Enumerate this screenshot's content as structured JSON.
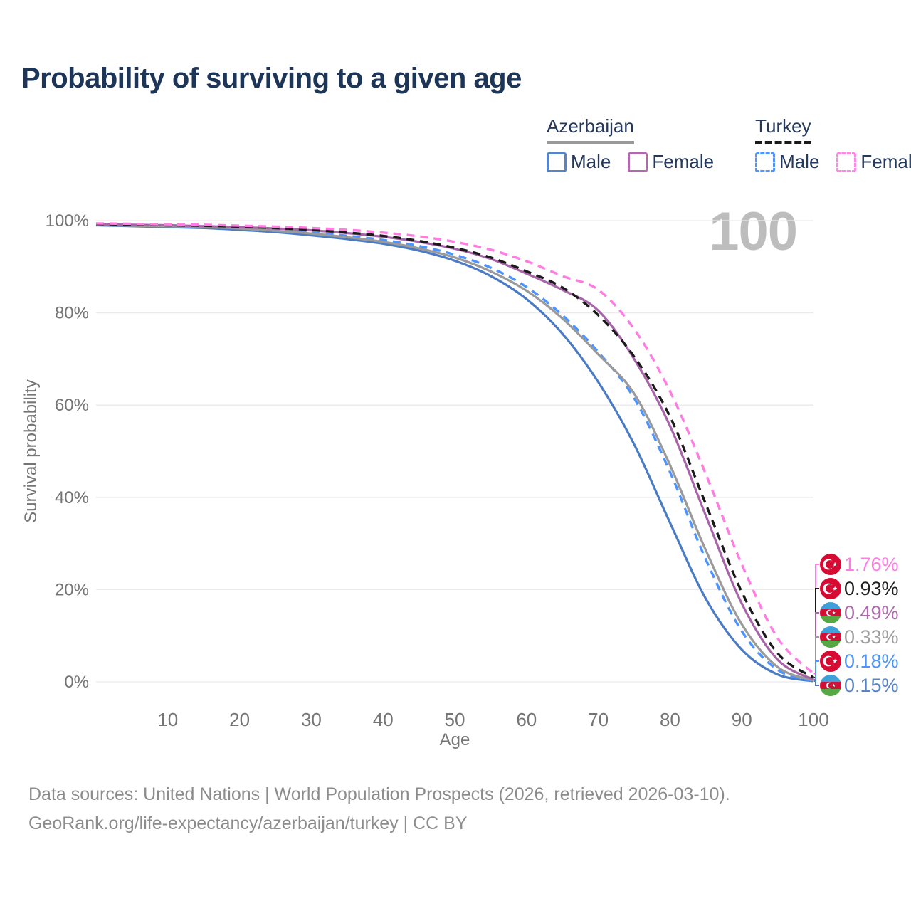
{
  "page_title": "Probability of surviving to a given age",
  "watermark_label": "100",
  "legend": {
    "groups": [
      {
        "label": "Azerbaijan",
        "line_style": "solid",
        "line_color": "#9a9a9a",
        "items": [
          {
            "label": "Male",
            "swatch_color": "#5585c8",
            "swatch_style": "solid"
          },
          {
            "label": "Female",
            "swatch_color": "#b069ad",
            "swatch_style": "solid"
          }
        ]
      },
      {
        "label": "Turkey",
        "line_style": "dashed",
        "line_color": "#1a1a1a",
        "items": [
          {
            "label": "Male",
            "swatch_color": "#4d94ff",
            "swatch_style": "dashed"
          },
          {
            "label": "Female",
            "swatch_color": "#ff85e6",
            "swatch_style": "dashed"
          }
        ]
      }
    ]
  },
  "chart_data": {
    "type": "line",
    "title": "Probability of surviving to a given age",
    "xlabel": "Age",
    "ylabel": "Survival probability",
    "xlim": [
      0,
      100
    ],
    "ylim": [
      0,
      100
    ],
    "grid": true,
    "legend_position": "top-right",
    "x_ticks": [
      10,
      20,
      30,
      40,
      50,
      60,
      70,
      80,
      90,
      100
    ],
    "y_tick_values": [
      0,
      20,
      40,
      60,
      80,
      100
    ],
    "y_tick_labels": [
      "0%",
      "20%",
      "40%",
      "60%",
      "80%",
      "100%"
    ],
    "ages": [
      0,
      5,
      10,
      15,
      20,
      25,
      30,
      35,
      40,
      45,
      50,
      55,
      60,
      65,
      70,
      75,
      80,
      85,
      90,
      95,
      100
    ],
    "series": [
      {
        "name": "Azerbaijan Male",
        "country": "Azerbaijan",
        "sex": "Male",
        "color": "#4a7bc4",
        "dash": "solid",
        "flag": "azerbaijan",
        "end_label": "0.15%",
        "label_color": "#5585c8",
        "values": [
          99.0,
          98.8,
          98.6,
          98.4,
          98.0,
          97.5,
          96.8,
          96.0,
          95.0,
          93.5,
          91.3,
          88.0,
          83.0,
          75.5,
          65.0,
          51.5,
          34.5,
          18.0,
          7.0,
          1.6,
          0.15
        ]
      },
      {
        "name": "Turkey Male",
        "country": "Turkey",
        "sex": "Male",
        "color": "#4d94ff",
        "dash": "dashed",
        "flag": "turkey",
        "end_label": "0.18%",
        "label_color": "#4d94ff",
        "values": [
          99.2,
          99.0,
          98.9,
          98.7,
          98.4,
          98.0,
          97.4,
          96.7,
          95.8,
          94.5,
          92.6,
          89.8,
          85.6,
          79.5,
          71.5,
          61.5,
          45.5,
          26.5,
          11.0,
          2.6,
          0.18
        ]
      },
      {
        "name": "Azerbaijan",
        "country": "Azerbaijan",
        "sex": "Both",
        "color": "#9a9a9a",
        "dash": "solid",
        "flag": "azerbaijan",
        "end_label": "0.33%",
        "label_color": "#9e9e9e",
        "values": [
          99.1,
          98.9,
          98.8,
          98.6,
          98.3,
          97.8,
          97.2,
          96.4,
          95.4,
          94.0,
          92.0,
          89.0,
          84.8,
          78.8,
          71.0,
          62.5,
          47.0,
          28.5,
          12.5,
          3.2,
          0.33
        ]
      },
      {
        "name": "Azerbaijan Female",
        "country": "Azerbaijan",
        "sex": "Female",
        "color": "#a764a8",
        "dash": "solid",
        "flag": "azerbaijan",
        "end_label": "0.49%",
        "label_color": "#b069ad",
        "values": [
          99.2,
          99.1,
          99.0,
          98.8,
          98.6,
          98.3,
          97.9,
          97.3,
          96.5,
          95.4,
          93.9,
          91.7,
          88.5,
          85.0,
          80.5,
          70.0,
          55.5,
          36.0,
          17.0,
          4.8,
          0.49
        ]
      },
      {
        "name": "Turkey",
        "country": "Turkey",
        "sex": "Both",
        "color": "#1a1a1a",
        "dash": "dashed",
        "flag": "turkey",
        "end_label": "0.93%",
        "label_color": "#222222",
        "values": [
          99.3,
          99.1,
          99.0,
          98.9,
          98.7,
          98.4,
          98.0,
          97.4,
          96.7,
          95.6,
          94.1,
          92.0,
          89.0,
          85.5,
          79.5,
          70.5,
          57.5,
          38.5,
          19.5,
          6.2,
          0.93
        ]
      },
      {
        "name": "Turkey Female",
        "country": "Turkey",
        "sex": "Female",
        "color": "#ff7ce3",
        "dash": "dashed",
        "flag": "turkey",
        "end_label": "1.76%",
        "label_color": "#ff7ce3",
        "values": [
          99.4,
          99.3,
          99.2,
          99.1,
          98.9,
          98.7,
          98.4,
          98.0,
          97.4,
          96.6,
          95.4,
          93.7,
          91.2,
          88.0,
          85.0,
          76.5,
          63.0,
          45.0,
          25.5,
          9.5,
          1.76
        ]
      }
    ]
  },
  "footer": {
    "line1": "Data sources: United Nations | World Population Prospects (2026, retrieved 2026-03-10).",
    "line2": "GeoRank.org/life-expectancy/azerbaijan/turkey | CC BY"
  }
}
